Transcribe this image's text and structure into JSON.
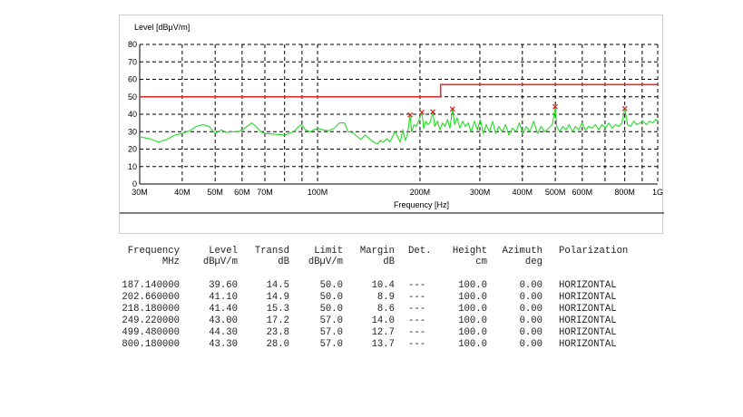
{
  "chart_data": {
    "type": "line",
    "ylabel": "Level [dBµV/m]",
    "xlabel": "Frequency [Hz]",
    "x_scale": "log",
    "xlim": [
      30,
      1000
    ],
    "ylim": [
      0,
      80
    ],
    "grid": true,
    "y_ticks": [
      0,
      10,
      20,
      30,
      40,
      50,
      60,
      70,
      80
    ],
    "x_ticks": [
      {
        "value": 30,
        "label": "30M"
      },
      {
        "value": 40,
        "label": "40M"
      },
      {
        "value": 50,
        "label": "50M"
      },
      {
        "value": 60,
        "label": "60M"
      },
      {
        "value": 70,
        "label": "70M"
      },
      {
        "value": 80,
        "label": ""
      },
      {
        "value": 90,
        "label": ""
      },
      {
        "value": 100,
        "label": "100M"
      },
      {
        "value": 200,
        "label": "200M"
      },
      {
        "value": 300,
        "label": "300M"
      },
      {
        "value": 400,
        "label": "400M"
      },
      {
        "value": 500,
        "label": "500M"
      },
      {
        "value": 600,
        "label": "600M"
      },
      {
        "value": 700,
        "label": ""
      },
      {
        "value": 800,
        "label": "800M"
      },
      {
        "value": 900,
        "label": ""
      },
      {
        "value": 1000,
        "label": "1G"
      }
    ],
    "limit_line": {
      "color": "#e03030",
      "points": [
        [
          30,
          50
        ],
        [
          230,
          50
        ],
        [
          230,
          57
        ],
        [
          1000,
          57
        ]
      ]
    },
    "measurement_trace": {
      "color": "#22dd22",
      "points": [
        [
          30,
          27
        ],
        [
          32,
          26
        ],
        [
          34,
          24
        ],
        [
          36,
          25.5
        ],
        [
          38,
          28
        ],
        [
          40,
          29
        ],
        [
          42,
          30.5
        ],
        [
          44,
          33
        ],
        [
          46,
          34
        ],
        [
          48,
          33
        ],
        [
          50,
          29
        ],
        [
          52,
          31
        ],
        [
          54,
          29.5
        ],
        [
          56,
          30
        ],
        [
          58,
          30
        ],
        [
          60,
          31
        ],
        [
          62,
          33
        ],
        [
          64,
          35
        ],
        [
          66,
          33
        ],
        [
          68,
          30
        ],
        [
          70,
          29
        ],
        [
          75,
          28.5
        ],
        [
          80,
          28
        ],
        [
          85,
          30
        ],
        [
          88,
          33
        ],
        [
          90,
          34
        ],
        [
          92,
          31
        ],
        [
          95,
          30
        ],
        [
          100,
          32
        ],
        [
          104,
          31
        ],
        [
          108,
          30.5
        ],
        [
          112,
          32
        ],
        [
          116,
          35
        ],
        [
          120,
          35
        ],
        [
          123,
          30
        ],
        [
          127,
          29.5
        ],
        [
          131,
          27
        ],
        [
          134,
          25.5
        ],
        [
          138,
          28
        ],
        [
          142,
          26
        ],
        [
          146,
          24
        ],
        [
          150,
          23
        ],
        [
          153,
          25
        ],
        [
          156,
          24
        ],
        [
          160,
          26
        ],
        [
          163,
          24
        ],
        [
          166,
          27
        ],
        [
          169,
          30
        ],
        [
          172,
          27
        ],
        [
          175,
          24
        ],
        [
          178,
          31
        ],
        [
          181,
          25
        ],
        [
          184,
          29
        ],
        [
          187,
          39.6
        ],
        [
          189,
          30
        ],
        [
          192,
          34
        ],
        [
          195,
          33
        ],
        [
          199,
          37
        ],
        [
          202.66,
          41.1
        ],
        [
          205,
          32
        ],
        [
          208,
          36
        ],
        [
          211,
          34
        ],
        [
          214,
          35
        ],
        [
          218.18,
          41.4
        ],
        [
          221,
          33
        ],
        [
          225,
          36
        ],
        [
          229,
          31
        ],
        [
          233,
          35
        ],
        [
          237,
          33
        ],
        [
          241,
          37
        ],
        [
          245,
          32
        ],
        [
          249.22,
          43
        ],
        [
          253,
          34
        ],
        [
          257,
          38
        ],
        [
          262,
          32
        ],
        [
          267,
          36
        ],
        [
          272,
          33
        ],
        [
          277,
          35
        ],
        [
          283,
          30
        ],
        [
          289,
          36
        ],
        [
          295,
          31
        ],
        [
          301,
          37
        ],
        [
          307,
          29
        ],
        [
          313,
          34
        ],
        [
          320,
          30
        ],
        [
          327,
          36
        ],
        [
          334,
          29
        ],
        [
          341,
          33
        ],
        [
          349,
          30
        ],
        [
          357,
          34
        ],
        [
          365,
          28
        ],
        [
          374,
          32
        ],
        [
          383,
          30
        ],
        [
          392,
          35
        ],
        [
          401,
          29
        ],
        [
          411,
          33
        ],
        [
          421,
          30
        ],
        [
          432,
          36
        ],
        [
          443,
          29
        ],
        [
          454,
          33
        ],
        [
          466,
          30
        ],
        [
          478,
          32
        ],
        [
          490,
          34
        ],
        [
          499.48,
          44.3
        ],
        [
          505,
          33
        ],
        [
          515,
          30
        ],
        [
          526,
          33
        ],
        [
          537,
          31
        ],
        [
          549,
          34
        ],
        [
          561,
          30
        ],
        [
          573,
          33
        ],
        [
          586,
          31
        ],
        [
          599,
          35
        ],
        [
          613,
          31
        ],
        [
          627,
          33
        ],
        [
          641,
          32
        ],
        [
          656,
          34
        ],
        [
          671,
          31
        ],
        [
          686,
          34
        ],
        [
          702,
          32
        ],
        [
          718,
          35
        ],
        [
          735,
          32
        ],
        [
          752,
          34
        ],
        [
          770,
          33
        ],
        [
          785,
          35
        ],
        [
          800.18,
          43.3
        ],
        [
          815,
          34
        ],
        [
          832,
          33
        ],
        [
          850,
          36
        ],
        [
          868,
          34
        ],
        [
          887,
          35
        ],
        [
          906,
          36
        ],
        [
          926,
          34
        ],
        [
          946,
          36
        ],
        [
          967,
          35
        ],
        [
          988,
          37
        ],
        [
          1000,
          36
        ]
      ]
    },
    "markers": [
      {
        "x": 187.14,
        "y": 39.6
      },
      {
        "x": 202.66,
        "y": 41.1
      },
      {
        "x": 218.18,
        "y": 41.4
      },
      {
        "x": 249.22,
        "y": 43.0
      },
      {
        "x": 499.48,
        "y": 44.3
      },
      {
        "x": 800.18,
        "y": 43.3
      }
    ],
    "marker_color": "#d02020"
  },
  "table": {
    "headers": [
      {
        "line1": "Frequency",
        "line2": "MHz"
      },
      {
        "line1": "Level",
        "line2": "dBµV/m"
      },
      {
        "line1": "Transd",
        "line2": "dB"
      },
      {
        "line1": "Limit",
        "line2": "dBµV/m"
      },
      {
        "line1": "Margin",
        "line2": "dB"
      },
      {
        "line1": "Det.",
        "line2": ""
      },
      {
        "line1": "Height",
        "line2": "cm"
      },
      {
        "line1": "Azimuth",
        "line2": "deg"
      },
      {
        "line1": "Polarization",
        "line2": ""
      }
    ],
    "rows": [
      [
        "187.140000",
        "39.60",
        "14.5",
        "50.0",
        "10.4",
        "---",
        "100.0",
        "0.00",
        "HORIZONTAL"
      ],
      [
        "202.660000",
        "41.10",
        "14.9",
        "50.0",
        "8.9",
        "---",
        "100.0",
        "0.00",
        "HORIZONTAL"
      ],
      [
        "218.180000",
        "41.40",
        "15.3",
        "50.0",
        "8.6",
        "---",
        "100.0",
        "0.00",
        "HORIZONTAL"
      ],
      [
        "249.220000",
        "43.00",
        "17.2",
        "57.0",
        "14.0",
        "---",
        "100.0",
        "0.00",
        "HORIZONTAL"
      ],
      [
        "499.480000",
        "44.30",
        "23.8",
        "57.0",
        "12.7",
        "---",
        "100.0",
        "0.00",
        "HORIZONTAL"
      ],
      [
        "800.180000",
        "43.30",
        "28.0",
        "57.0",
        "13.7",
        "---",
        "100.0",
        "0.00",
        "HORIZONTAL"
      ]
    ]
  }
}
